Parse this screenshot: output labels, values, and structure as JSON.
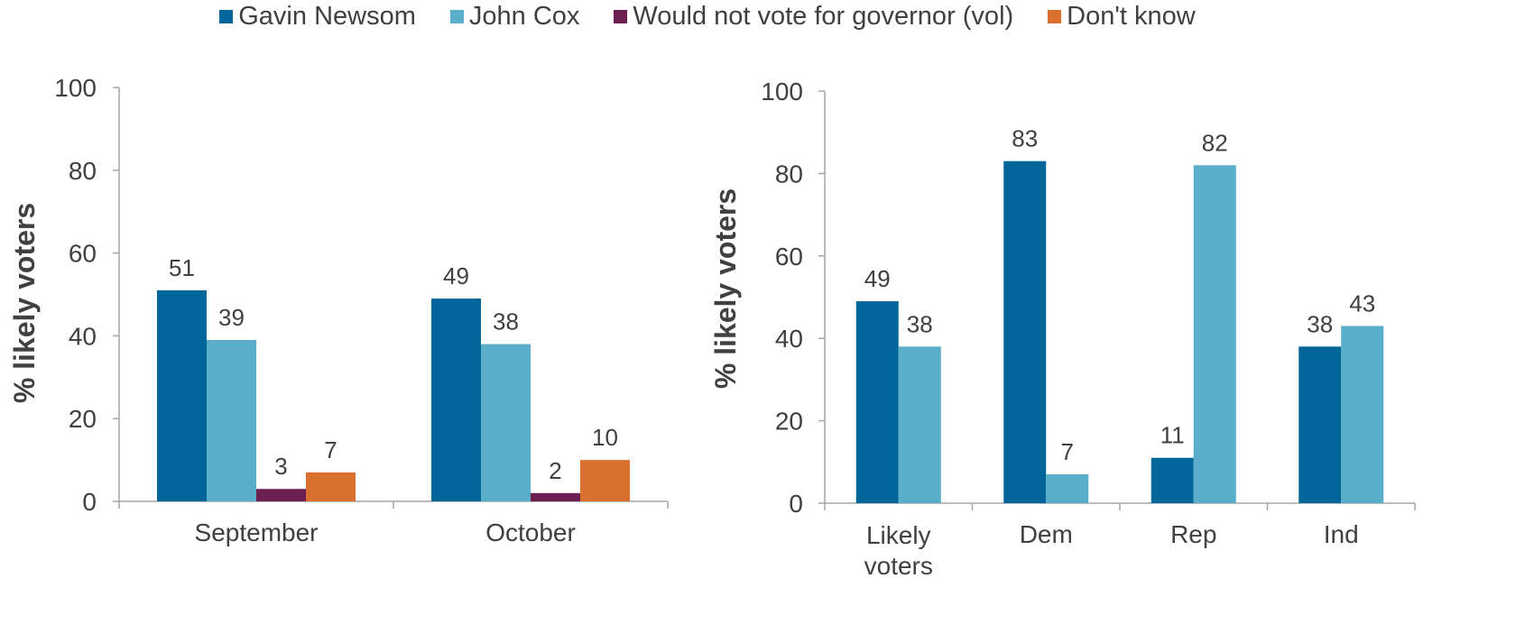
{
  "legend": [
    {
      "name": "Gavin Newsom",
      "color": "#006699"
    },
    {
      "name": "John Cox",
      "color": "#5aaec9"
    },
    {
      "name": "Would not vote for governor (vol)",
      "color": "#6a1f50"
    },
    {
      "name": "Don't know",
      "color": "#d9702f"
    }
  ],
  "chart_data": [
    {
      "type": "bar",
      "ylabel": "% likely voters",
      "ylim": [
        0,
        100
      ],
      "yticks": [
        "0",
        "20",
        "40",
        "60",
        "80",
        "100"
      ],
      "categories": [
        "September",
        "October"
      ],
      "series": [
        {
          "name": "Gavin Newsom",
          "color": "#006699",
          "values": [
            51,
            49
          ]
        },
        {
          "name": "John Cox",
          "color": "#5aaec9",
          "values": [
            39,
            38
          ]
        },
        {
          "name": "Would not vote for governor (vol)",
          "color": "#6a1f50",
          "values": [
            3,
            2
          ]
        },
        {
          "name": "Don't know",
          "color": "#d9702f",
          "values": [
            7,
            10
          ]
        }
      ]
    },
    {
      "type": "bar",
      "ylabel": "% likely voters",
      "ylim": [
        0,
        100
      ],
      "yticks": [
        "0",
        "20",
        "40",
        "60",
        "80",
        "100"
      ],
      "categories": [
        "Likely voters",
        "Dem",
        "Rep",
        "Ind"
      ],
      "series": [
        {
          "name": "Gavin Newsom",
          "color": "#006699",
          "values": [
            49,
            83,
            11,
            38
          ]
        },
        {
          "name": "John Cox",
          "color": "#5aaec9",
          "values": [
            38,
            7,
            82,
            43
          ]
        }
      ]
    }
  ]
}
